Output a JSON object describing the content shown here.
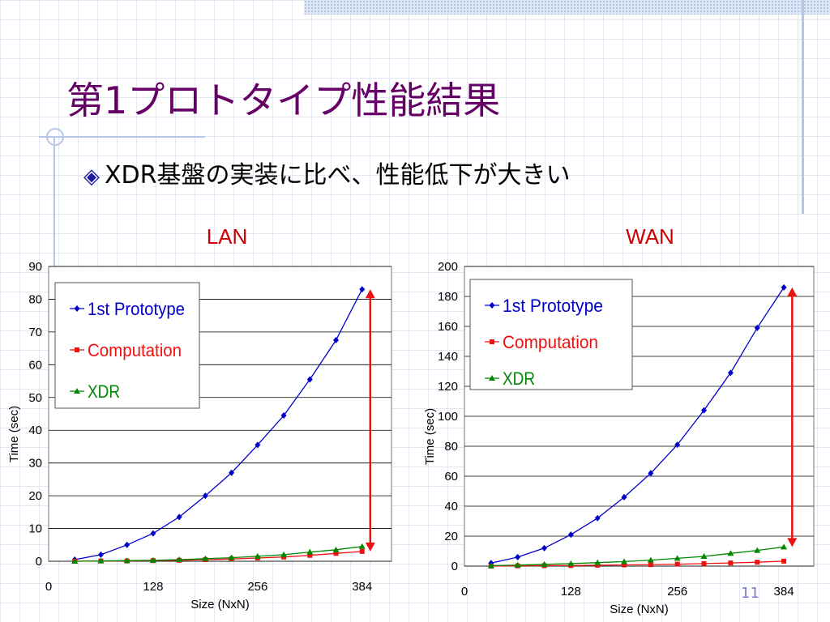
{
  "slide": {
    "title": "第1プロトタイプ性能結果",
    "bullet_icon": "diamond-icon",
    "bullet": "XDR基盤の実装に比べ、性能低下が大きい",
    "page_number": "11"
  },
  "colors": {
    "title": "#660066",
    "prototype": "#0000cc",
    "computation": "#ee1111",
    "xdr": "#008800",
    "arrow": "#ee1111"
  },
  "chart_data": [
    {
      "type": "line",
      "title": "LAN",
      "xlabel": "Size (NxN)",
      "ylabel": "Time (sec)",
      "xlim": [
        0,
        420
      ],
      "ylim": [
        0,
        90
      ],
      "x_ticks": [
        0,
        128,
        256,
        384
      ],
      "y_ticks": [
        0,
        10,
        20,
        30,
        40,
        50,
        60,
        70,
        80,
        90
      ],
      "grid": true,
      "legend": "upper-left",
      "x": [
        32,
        64,
        96,
        128,
        160,
        192,
        224,
        256,
        288,
        320,
        352,
        384
      ],
      "series": [
        {
          "name": "1st Prototype",
          "values": [
            0.5,
            2,
            5,
            8.5,
            13.5,
            20,
            27,
            35.5,
            44.5,
            55.5,
            67.5,
            83
          ]
        },
        {
          "name": "Computation",
          "values": [
            0,
            0.1,
            0.1,
            0.2,
            0.3,
            0.5,
            0.7,
            1,
            1.3,
            1.8,
            2.4,
            3
          ]
        },
        {
          "name": "XDR",
          "values": [
            0,
            0.1,
            0.2,
            0.3,
            0.5,
            0.8,
            1.1,
            1.5,
            2,
            2.8,
            3.5,
            4.5
          ]
        }
      ],
      "annotation": {
        "type": "double-arrow",
        "x": 394,
        "from": 3,
        "to": 83
      }
    },
    {
      "type": "line",
      "title": "WAN",
      "xlabel": "Size (NxN)",
      "ylabel": "Time (sec)",
      "xlim": [
        0,
        420
      ],
      "ylim": [
        0,
        200
      ],
      "x_ticks": [
        0,
        128,
        256,
        384
      ],
      "y_ticks": [
        0,
        20,
        40,
        60,
        80,
        100,
        120,
        140,
        160,
        180,
        200
      ],
      "grid": true,
      "legend": "upper-left",
      "x": [
        32,
        64,
        96,
        128,
        160,
        192,
        224,
        256,
        288,
        320,
        352,
        384
      ],
      "series": [
        {
          "name": "1st Prototype",
          "values": [
            2,
            6,
            12,
            21,
            32,
            46,
            62,
            81,
            104,
            129,
            159,
            186
          ]
        },
        {
          "name": "Computation",
          "values": [
            0,
            0.2,
            0.3,
            0.4,
            0.6,
            0.8,
            1,
            1.3,
            1.7,
            2.1,
            2.6,
            3.3
          ]
        },
        {
          "name": "XDR",
          "values": [
            0.3,
            0.7,
            1.2,
            1.7,
            2.3,
            3,
            4,
            5.2,
            6.5,
            8.5,
            10.5,
            12.8
          ]
        }
      ],
      "annotation": {
        "type": "double-arrow",
        "x": 394,
        "from": 12.8,
        "to": 186
      }
    }
  ]
}
